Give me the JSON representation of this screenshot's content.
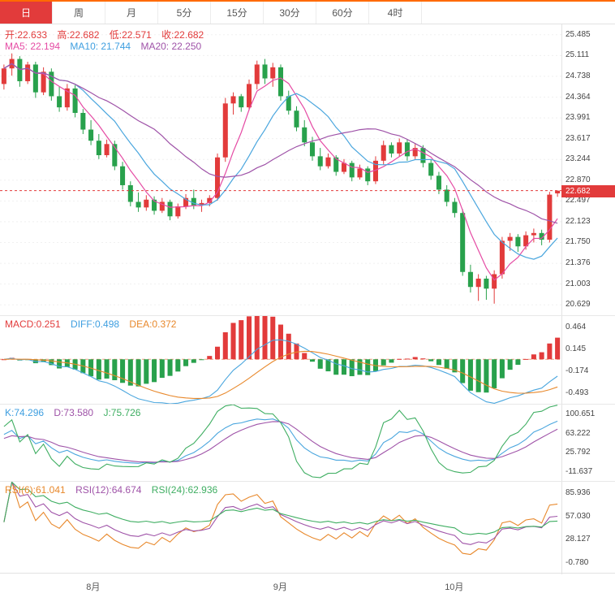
{
  "tabs": [
    {
      "label": "日",
      "active": true
    },
    {
      "label": "周",
      "active": false
    },
    {
      "label": "月",
      "active": false
    },
    {
      "label": "5分",
      "active": false
    },
    {
      "label": "15分",
      "active": false
    },
    {
      "label": "30分",
      "active": false
    },
    {
      "label": "60分",
      "active": false
    },
    {
      "label": "4时",
      "active": false
    }
  ],
  "price_legend": {
    "open": "开:22.633",
    "high": "高:22.682",
    "low": "低:22.571",
    "close": "收:22.682",
    "ma5": "MA5: 22.194",
    "ma10": "MA10: 21.744",
    "ma20": "MA20: 22.250"
  },
  "macd_legend": {
    "macd": "MACD:0.251",
    "diff": "DIFF:0.498",
    "dea": "DEA:0.372"
  },
  "kdj_legend": {
    "k": "K:74.296",
    "d": "D:73.580",
    "j": "J:75.726"
  },
  "rsi_legend": {
    "rsi6": "RSI(6):61.041",
    "rsi12": "RSI(12):64.674",
    "rsi24": "RSI(24):62.936"
  },
  "x_axis": {
    "labels": [
      {
        "text": "8月",
        "pos": 0.166
      },
      {
        "text": "9月",
        "pos": 0.499
      },
      {
        "text": "10月",
        "pos": 0.809
      }
    ]
  },
  "chart_data": {
    "type": "candlestick",
    "price_panel": {
      "y_ticks": [
        25.485,
        25.111,
        24.738,
        24.364,
        23.991,
        23.617,
        23.244,
        22.87,
        22.497,
        22.123,
        21.75,
        21.376,
        21.003,
        20.629
      ],
      "current_price": 22.682,
      "current_price_label": "22.682",
      "ohlc": {
        "open": 22.633,
        "high": 22.682,
        "low": 22.571,
        "close": 22.682
      },
      "ma": {
        "ma5": 22.194,
        "ma10": 21.744,
        "ma20": 22.25
      },
      "candles": [
        [
          24.6,
          24.95,
          24.5,
          24.88
        ],
        [
          24.88,
          25.15,
          24.75,
          25.05
        ],
        [
          25.05,
          25.1,
          24.55,
          24.65
        ],
        [
          24.65,
          25.0,
          24.6,
          24.95
        ],
        [
          24.95,
          25.0,
          24.35,
          24.45
        ],
        [
          24.45,
          24.9,
          24.4,
          24.82
        ],
        [
          24.82,
          24.88,
          24.3,
          24.38
        ],
        [
          24.38,
          24.55,
          24.1,
          24.18
        ],
        [
          24.18,
          24.6,
          24.12,
          24.52
        ],
        [
          24.52,
          24.58,
          24.0,
          24.08
        ],
        [
          24.08,
          24.15,
          23.7,
          23.78
        ],
        [
          23.78,
          23.95,
          23.5,
          23.58
        ],
        [
          23.58,
          23.7,
          23.25,
          23.32
        ],
        [
          23.32,
          23.6,
          23.28,
          23.52
        ],
        [
          23.52,
          23.58,
          23.05,
          23.12
        ],
        [
          23.12,
          23.2,
          22.7,
          22.78
        ],
        [
          22.78,
          22.85,
          22.4,
          22.48
        ],
        [
          22.48,
          22.65,
          22.3,
          22.38
        ],
        [
          22.38,
          22.6,
          22.32,
          22.52
        ],
        [
          22.52,
          22.58,
          22.25,
          22.32
        ],
        [
          22.32,
          22.55,
          22.28,
          22.48
        ],
        [
          22.48,
          22.52,
          22.15,
          22.22
        ],
        [
          22.22,
          22.45,
          22.18,
          22.4
        ],
        [
          22.4,
          22.62,
          22.35,
          22.55
        ],
        [
          22.55,
          22.7,
          22.35,
          22.42
        ],
        [
          22.42,
          22.52,
          22.3,
          22.46
        ],
        [
          22.46,
          22.6,
          22.4,
          22.55
        ],
        [
          22.55,
          23.35,
          22.5,
          23.28
        ],
        [
          23.28,
          24.35,
          23.2,
          24.25
        ],
        [
          24.25,
          24.45,
          24.05,
          24.38
        ],
        [
          24.38,
          24.42,
          24.1,
          24.18
        ],
        [
          24.18,
          24.68,
          24.12,
          24.6
        ],
        [
          24.6,
          25.02,
          24.5,
          24.95
        ],
        [
          24.95,
          25.05,
          24.6,
          24.7
        ],
        [
          24.7,
          24.98,
          24.55,
          24.9
        ],
        [
          24.9,
          24.95,
          24.3,
          24.38
        ],
        [
          24.38,
          24.48,
          24.05,
          24.12
        ],
        [
          24.12,
          24.2,
          23.75,
          23.82
        ],
        [
          23.82,
          23.95,
          23.48,
          23.55
        ],
        [
          23.55,
          23.65,
          23.22,
          23.3
        ],
        [
          23.3,
          23.45,
          23.05,
          23.12
        ],
        [
          23.12,
          23.35,
          23.08,
          23.28
        ],
        [
          23.28,
          23.32,
          22.95,
          23.02
        ],
        [
          23.02,
          23.25,
          22.98,
          23.18
        ],
        [
          23.18,
          23.22,
          22.85,
          22.92
        ],
        [
          22.92,
          23.15,
          22.88,
          23.08
        ],
        [
          23.08,
          23.12,
          22.78,
          22.85
        ],
        [
          22.85,
          23.3,
          22.8,
          23.22
        ],
        [
          23.22,
          23.58,
          23.15,
          23.5
        ],
        [
          23.5,
          23.55,
          23.28,
          23.35
        ],
        [
          23.35,
          23.62,
          23.3,
          23.55
        ],
        [
          23.55,
          23.6,
          23.22,
          23.3
        ],
        [
          23.3,
          23.52,
          23.25,
          23.45
        ],
        [
          23.45,
          23.5,
          23.1,
          23.18
        ],
        [
          23.18,
          23.25,
          22.88,
          22.95
        ],
        [
          22.95,
          23.02,
          22.62,
          22.7
        ],
        [
          22.7,
          22.78,
          22.4,
          22.48
        ],
        [
          22.48,
          22.55,
          22.2,
          22.28
        ],
        [
          22.28,
          22.35,
          21.15,
          21.22
        ],
        [
          21.22,
          21.35,
          20.85,
          20.95
        ],
        [
          20.95,
          21.18,
          20.7,
          21.1
        ],
        [
          21.1,
          21.15,
          20.72,
          20.92
        ],
        [
          20.92,
          21.25,
          20.65,
          21.18
        ],
        [
          21.18,
          21.85,
          21.1,
          21.78
        ],
        [
          21.78,
          21.92,
          21.6,
          21.85
        ],
        [
          21.85,
          21.9,
          21.58,
          21.68
        ],
        [
          21.68,
          21.95,
          21.62,
          21.88
        ],
        [
          21.88,
          22.0,
          21.75,
          21.92
        ],
        [
          21.92,
          21.98,
          21.7,
          21.8
        ],
        [
          21.8,
          22.66,
          21.75,
          22.61
        ],
        [
          22.633,
          22.682,
          22.571,
          22.682
        ]
      ]
    },
    "macd_panel": {
      "y_ticks": [
        0.464,
        0.145,
        -0.174,
        -0.493
      ],
      "macd": 0.251,
      "diff": 0.498,
      "dea": 0.372
    },
    "kdj_panel": {
      "y_ticks": [
        100.651,
        63.222,
        25.792,
        -11.637
      ],
      "k": 74.296,
      "d": 73.58,
      "j": 75.726
    },
    "rsi_panel": {
      "y_ticks": [
        85.936,
        57.03,
        28.127,
        -0.78
      ],
      "rsi6": 61.041,
      "rsi12": 64.674,
      "rsi24": 62.936
    },
    "colors": {
      "up": "#e23b3b",
      "down": "#28a14c",
      "ma5": "#e54ba4",
      "ma10": "#4aa6de",
      "ma20": "#9f53a8",
      "diff": "#4aa6de",
      "dea": "#e8882b",
      "k": "#4aa6de",
      "d": "#9f53a8",
      "j": "#3fae62",
      "rsi6": "#e8882b",
      "rsi12": "#9f53a8",
      "rsi24": "#3fae62",
      "accent_top_border": "#ff6a00",
      "price_tag_bg": "#e23b3b"
    }
  }
}
